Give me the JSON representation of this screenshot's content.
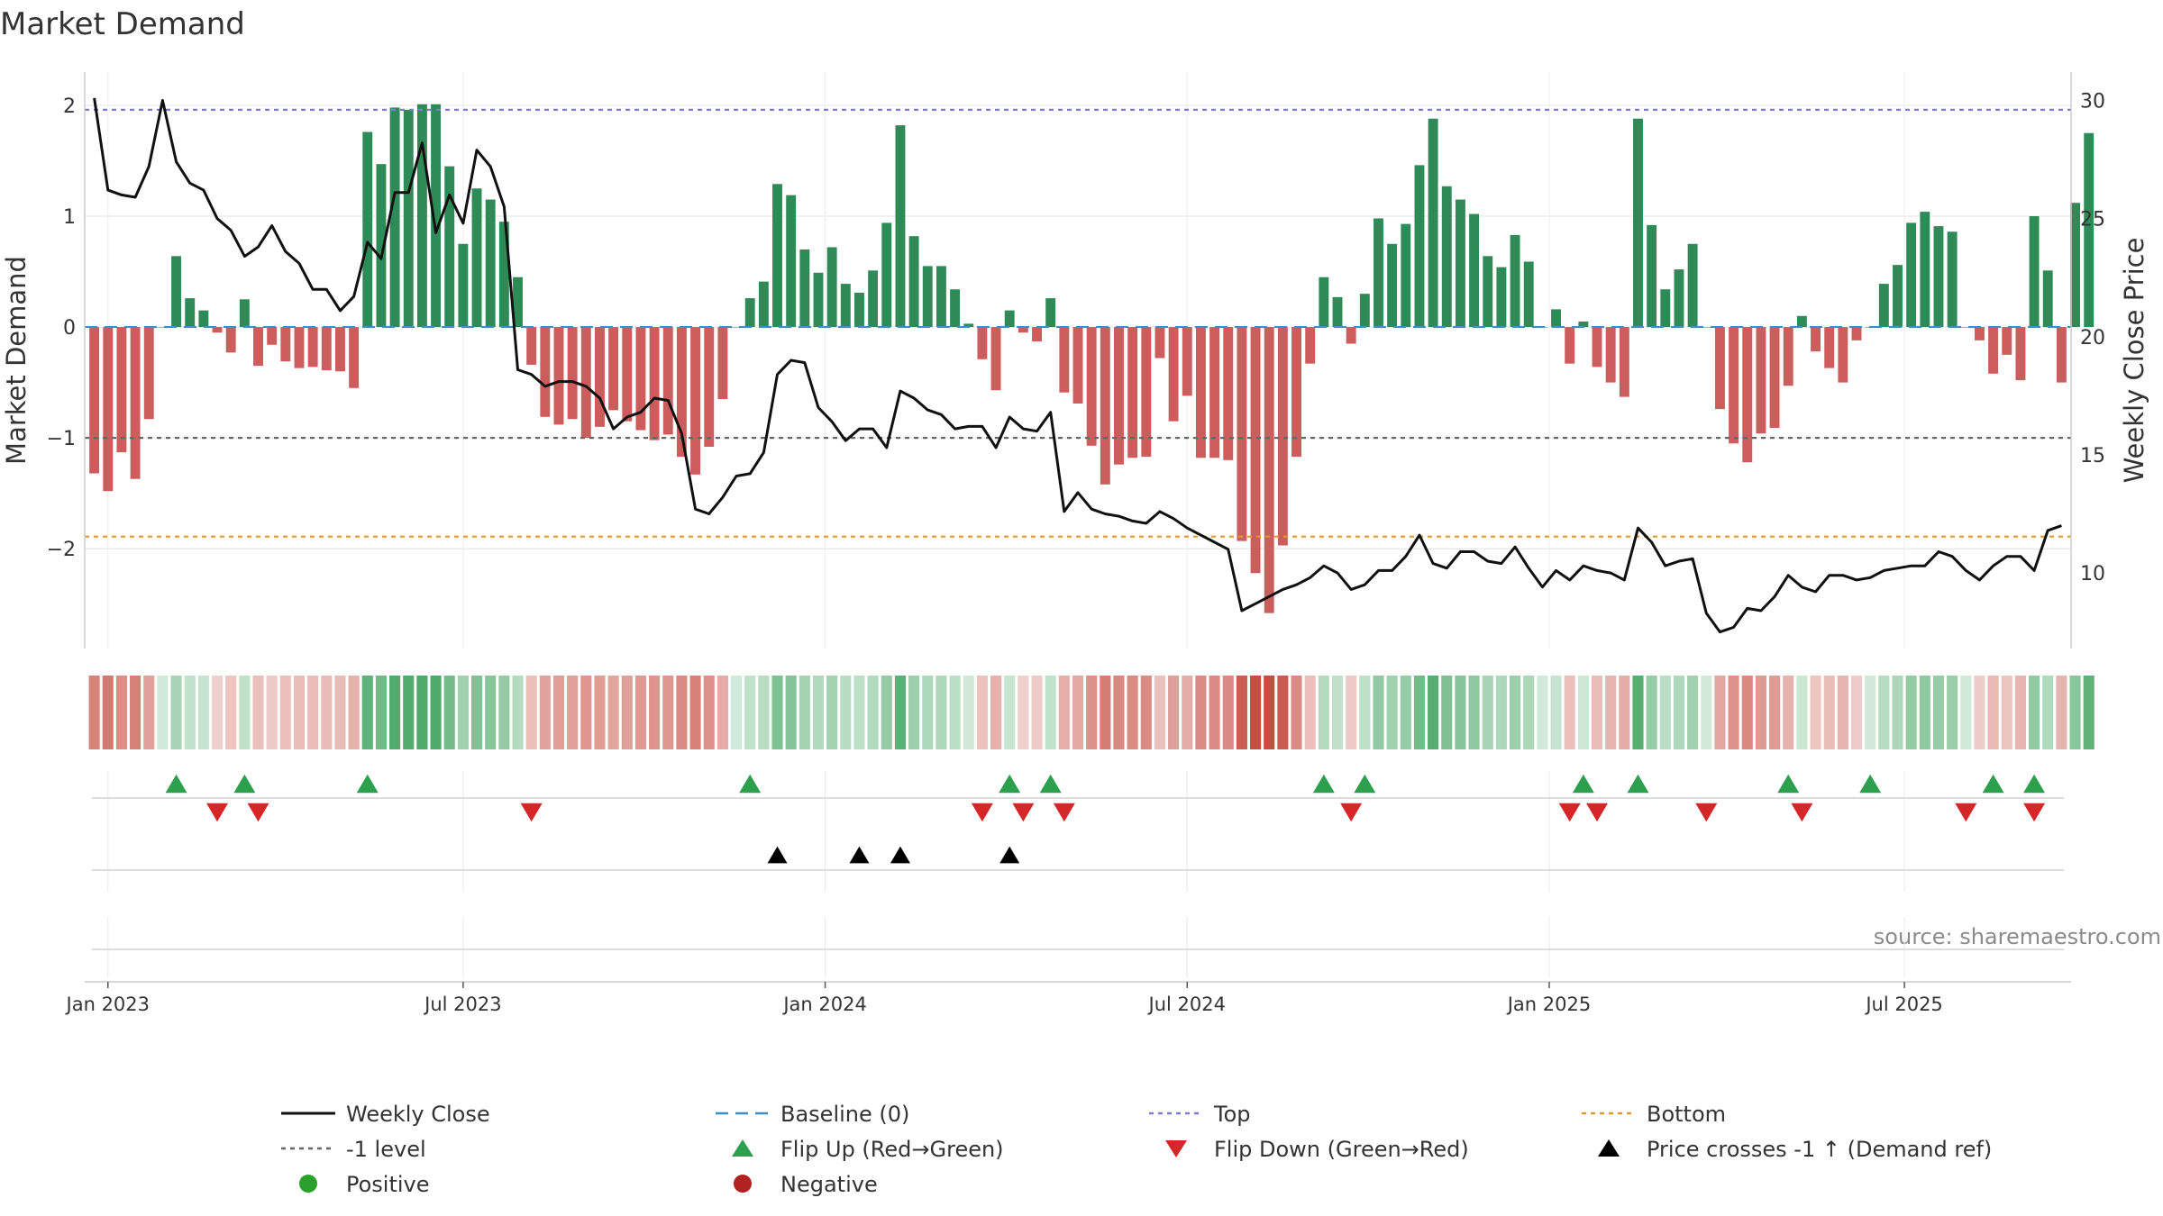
{
  "chart_data": {
    "type": "bar",
    "title": "Market Demand",
    "ylabel_left": "Market Demand",
    "ylabel_right": "Weekly Close Price",
    "ylim_left": [
      -2.9,
      2.3
    ],
    "ylim_right": [
      6.8,
      31.2
    ],
    "yticks_left": [
      {
        "v": 2,
        "label": "2"
      },
      {
        "v": 1,
        "label": "1"
      },
      {
        "v": 0,
        "label": "0"
      },
      {
        "v": -1,
        "label": "−1"
      },
      {
        "v": -2,
        "label": "−2"
      }
    ],
    "yticks_right": [
      {
        "v": 30,
        "label": "30"
      },
      {
        "v": 25,
        "label": "25"
      },
      {
        "v": 20,
        "label": "20"
      },
      {
        "v": 15,
        "label": "15"
      },
      {
        "v": 10,
        "label": "10"
      }
    ],
    "x_range": [
      -0.7,
      144.7
    ],
    "x_ticks": [
      {
        "x": 1,
        "label": "Jan 2023"
      },
      {
        "x": 27,
        "label": "Jul 2023"
      },
      {
        "x": 53.5,
        "label": "Jan 2024"
      },
      {
        "x": 80,
        "label": "Jul 2024"
      },
      {
        "x": 106.5,
        "label": "Jan 2025"
      },
      {
        "x": 132.5,
        "label": "Jul 2025"
      }
    ],
    "reference_lines": {
      "top": 1.96,
      "bottom": -1.89,
      "minus_one": -1.0,
      "baseline": 0
    },
    "demand": [
      -1.32,
      -1.48,
      -1.13,
      -1.37,
      -0.83,
      0.0,
      0.64,
      0.26,
      0.15,
      -0.05,
      -0.23,
      0.25,
      -0.35,
      -0.16,
      -0.31,
      -0.37,
      -0.36,
      -0.39,
      -0.4,
      -0.55,
      1.76,
      1.47,
      1.98,
      1.96,
      2.01,
      2.01,
      1.45,
      0.75,
      1.25,
      1.15,
      0.95,
      0.45,
      -0.34,
      -0.81,
      -0.88,
      -0.83,
      -1.0,
      -0.9,
      -0.75,
      -0.85,
      -0.93,
      -1.02,
      -0.97,
      -1.17,
      -1.33,
      -1.08,
      -0.65,
      0.0,
      0.26,
      0.41,
      1.29,
      1.19,
      0.7,
      0.49,
      0.72,
      0.39,
      0.31,
      0.51,
      0.94,
      1.82,
      0.82,
      0.55,
      0.55,
      0.34,
      0.03,
      -0.29,
      -0.57,
      0.15,
      -0.05,
      -0.13,
      0.26,
      -0.59,
      -0.69,
      -1.07,
      -1.42,
      -1.24,
      -1.18,
      -1.17,
      -0.28,
      -0.85,
      -0.62,
      -1.18,
      -1.18,
      -1.2,
      -1.93,
      -2.22,
      -2.58,
      -1.97,
      -1.17,
      -0.33,
      0.45,
      0.27,
      -0.15,
      0.3,
      0.98,
      0.75,
      0.93,
      1.46,
      1.88,
      1.27,
      1.15,
      1.02,
      0.64,
      0.54,
      0.83,
      0.59,
      0.0,
      0.16,
      -0.33,
      0.05,
      -0.36,
      -0.5,
      -0.63,
      1.88,
      0.92,
      0.34,
      0.52,
      0.75,
      0.0,
      -0.74,
      -1.05,
      -1.22,
      -0.96,
      -0.91,
      -0.53,
      0.1,
      -0.22,
      -0.37,
      -0.5,
      -0.12,
      0.0,
      0.39,
      0.56,
      0.94,
      1.04,
      0.91,
      0.86,
      0.0,
      -0.12,
      -0.42,
      -0.25,
      -0.48,
      1.0,
      0.51,
      -0.5,
      1.12,
      1.75
    ],
    "weekly_close": [
      30.1,
      26.2,
      26.0,
      25.9,
      27.2,
      30.0,
      27.4,
      26.5,
      26.2,
      25.0,
      24.5,
      23.4,
      23.8,
      24.7,
      23.6,
      23.1,
      22.0,
      22.0,
      21.1,
      21.7,
      24.0,
      23.3,
      26.1,
      26.1,
      28.2,
      24.4,
      26.0,
      24.8,
      27.9,
      27.2,
      25.5,
      18.6,
      18.4,
      17.9,
      18.1,
      18.1,
      17.9,
      17.4,
      16.1,
      16.6,
      16.8,
      17.4,
      17.3,
      15.9,
      12.7,
      12.5,
      13.2,
      14.1,
      14.2,
      15.1,
      18.4,
      19.0,
      18.9,
      17.0,
      16.4,
      15.6,
      16.1,
      16.1,
      15.3,
      17.7,
      17.4,
      16.9,
      16.7,
      16.1,
      16.2,
      16.2,
      15.3,
      16.6,
      16.1,
      16.0,
      16.8,
      12.6,
      13.4,
      12.7,
      12.5,
      12.4,
      12.2,
      12.1,
      12.6,
      12.3,
      11.9,
      11.6,
      11.3,
      11.0,
      8.4,
      8.7,
      9.0,
      9.3,
      9.5,
      9.8,
      10.3,
      10.0,
      9.3,
      9.5,
      10.1,
      10.1,
      10.7,
      11.6,
      10.4,
      10.2,
      10.9,
      10.9,
      10.5,
      10.4,
      11.1,
      10.2,
      9.4,
      10.1,
      9.7,
      10.3,
      10.1,
      10.0,
      9.7,
      11.9,
      11.3,
      10.3,
      10.5,
      10.6,
      8.3,
      7.5,
      7.7,
      8.5,
      8.4,
      9.0,
      9.9,
      9.4,
      9.2,
      9.9,
      9.9,
      9.7,
      9.8,
      10.1,
      10.2,
      10.3,
      10.3,
      10.9,
      10.7,
      10.1,
      9.7,
      10.3,
      10.7,
      10.7,
      10.1,
      11.8,
      12.0
    ],
    "flip_up_weeks": [
      6,
      11,
      20,
      48,
      67,
      70,
      90,
      93,
      109,
      113,
      124,
      130,
      139,
      142
    ],
    "flip_down_weeks": [
      9,
      12,
      32,
      65,
      68,
      71,
      92,
      108,
      110,
      118,
      125,
      137,
      142
    ],
    "price_cross_weeks": [
      50,
      56,
      59,
      67
    ],
    "source": "source: sharemaestro.com",
    "legend": [
      {
        "key": "weekly_close",
        "label": "Weekly Close"
      },
      {
        "key": "baseline",
        "label": "Baseline (0)"
      },
      {
        "key": "top",
        "label": "Top"
      },
      {
        "key": "bottom",
        "label": "Bottom"
      },
      {
        "key": "minus_one",
        "label": "-1 level"
      },
      {
        "key": "flip_up",
        "label": "Flip Up (Red→Green)"
      },
      {
        "key": "flip_down",
        "label": "Flip Down (Green→Red)"
      },
      {
        "key": "price_cross",
        "label": "Price crosses -1 ↑ (Demand ref)"
      },
      {
        "key": "positive",
        "label": "Positive"
      },
      {
        "key": "negative",
        "label": "Negative"
      }
    ],
    "colors": {
      "positive_bar": "#2e8b57",
      "negative_bar": "#cd5c5c",
      "price_line": "#111111",
      "baseline": "#3a8fc7",
      "top_line": "#7b7bd6",
      "bottom_line": "#e09a2a",
      "minus_one_line": "#666666",
      "flip_up": "#2ca04c",
      "flip_down": "#d62728",
      "price_cross": "#000000",
      "positive_dot": "#2ca02c",
      "negative_dot": "#b22222",
      "grid": "#e6e6e6",
      "axis": "#cccccc"
    }
  }
}
